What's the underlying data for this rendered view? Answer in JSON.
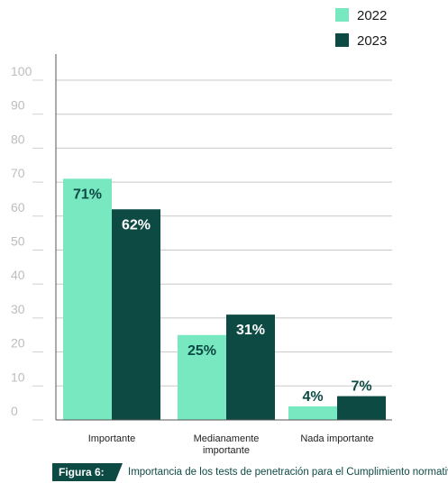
{
  "chart_data": {
    "type": "bar",
    "categories": [
      "Importante",
      "Medianamente importante",
      "Nada importante"
    ],
    "category_lines": [
      [
        "Importante"
      ],
      [
        "Medianamente",
        "importante"
      ],
      [
        "Nada importante"
      ]
    ],
    "series": [
      {
        "name": "2022",
        "values": [
          71,
          25,
          4
        ],
        "labels": [
          "71%",
          "25%",
          "4%"
        ],
        "color": "#78e8c0"
      },
      {
        "name": "2023",
        "values": [
          62,
          31,
          7
        ],
        "labels": [
          "62%",
          "31%",
          "7%"
        ],
        "color": "#0d4a44"
      }
    ],
    "yticks": [
      "100",
      "90",
      "80",
      "70",
      "60",
      "50",
      "40",
      "30",
      "20",
      "10",
      "0"
    ],
    "ylim": [
      0,
      100
    ],
    "grid": true,
    "legend_position": "top-right"
  },
  "caption": {
    "label": "Figura 6:",
    "text": "Importancia de los tests de penetración para el Cumplimiento normativo"
  }
}
